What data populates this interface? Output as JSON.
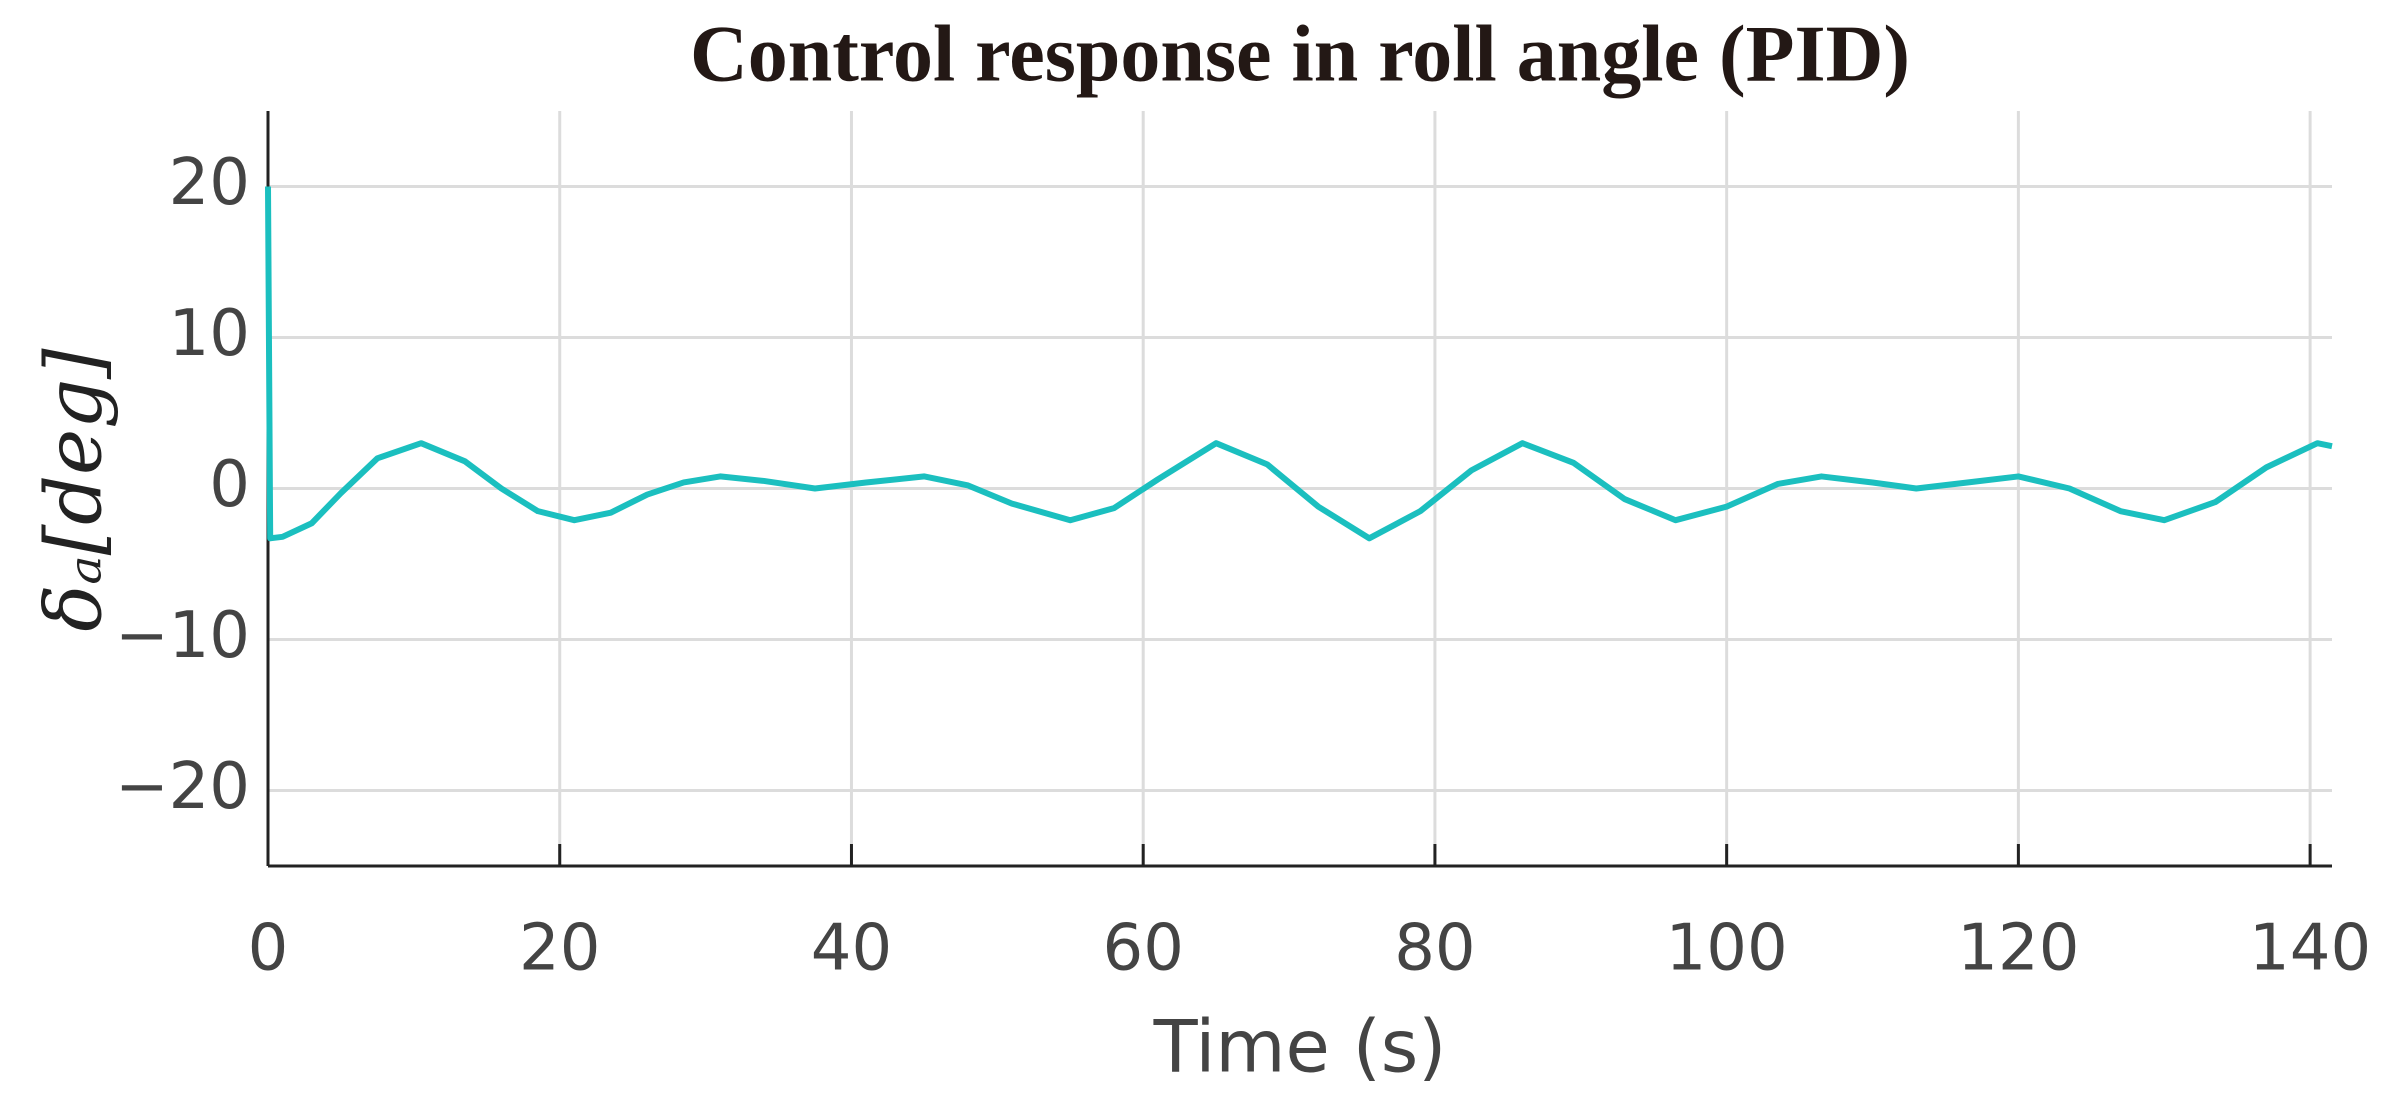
{
  "chart_data": {
    "type": "line",
    "title": "Control response in roll angle (PID)",
    "x_label": "Time (s)",
    "y_label": "δₐ[deg]",
    "x": [
      0,
      0.15,
      1,
      3,
      5,
      7.5,
      10.5,
      13.5,
      16,
      18.5,
      21,
      23.5,
      26,
      28.5,
      31,
      34,
      37.5,
      41,
      45,
      48,
      51,
      55,
      58,
      61,
      65,
      68.5,
      72,
      75.5,
      79,
      82.5,
      86,
      89.5,
      93,
      96.5,
      100,
      103.5,
      106.5,
      110,
      113,
      116.5,
      120,
      123.5,
      127,
      130,
      133.5,
      137,
      140.5,
      141.5
    ],
    "series": [
      {
        "color": "#1bbfbf",
        "values": [
          20,
          -3.3,
          -3.2,
          -2.3,
          -0.3,
          2,
          3,
          1.8,
          0,
          -1.5,
          -2.1,
          -1.6,
          -0.4,
          0.4,
          0.8,
          0.5,
          0,
          0.4,
          0.8,
          0.2,
          -1,
          -2.1,
          -1.3,
          0.6,
          3,
          1.6,
          -1.2,
          -3.3,
          -1.5,
          1.2,
          3,
          1.7,
          -0.7,
          -2.1,
          -1.2,
          0.3,
          0.8,
          0.4,
          0,
          0.4,
          0.8,
          0,
          -1.5,
          -2.1,
          -0.9,
          1.4,
          3,
          2.8
        ]
      }
    ],
    "xlim": [
      0,
      141.5
    ],
    "xticks": [
      0,
      20,
      40,
      60,
      80,
      100,
      120,
      140
    ],
    "ylim": [
      -25,
      25
    ],
    "yticks": [
      {
        "value": -20,
        "label": "−20"
      },
      {
        "value": -10,
        "label": "−10"
      },
      0,
      10,
      20
    ],
    "grid": true
  }
}
